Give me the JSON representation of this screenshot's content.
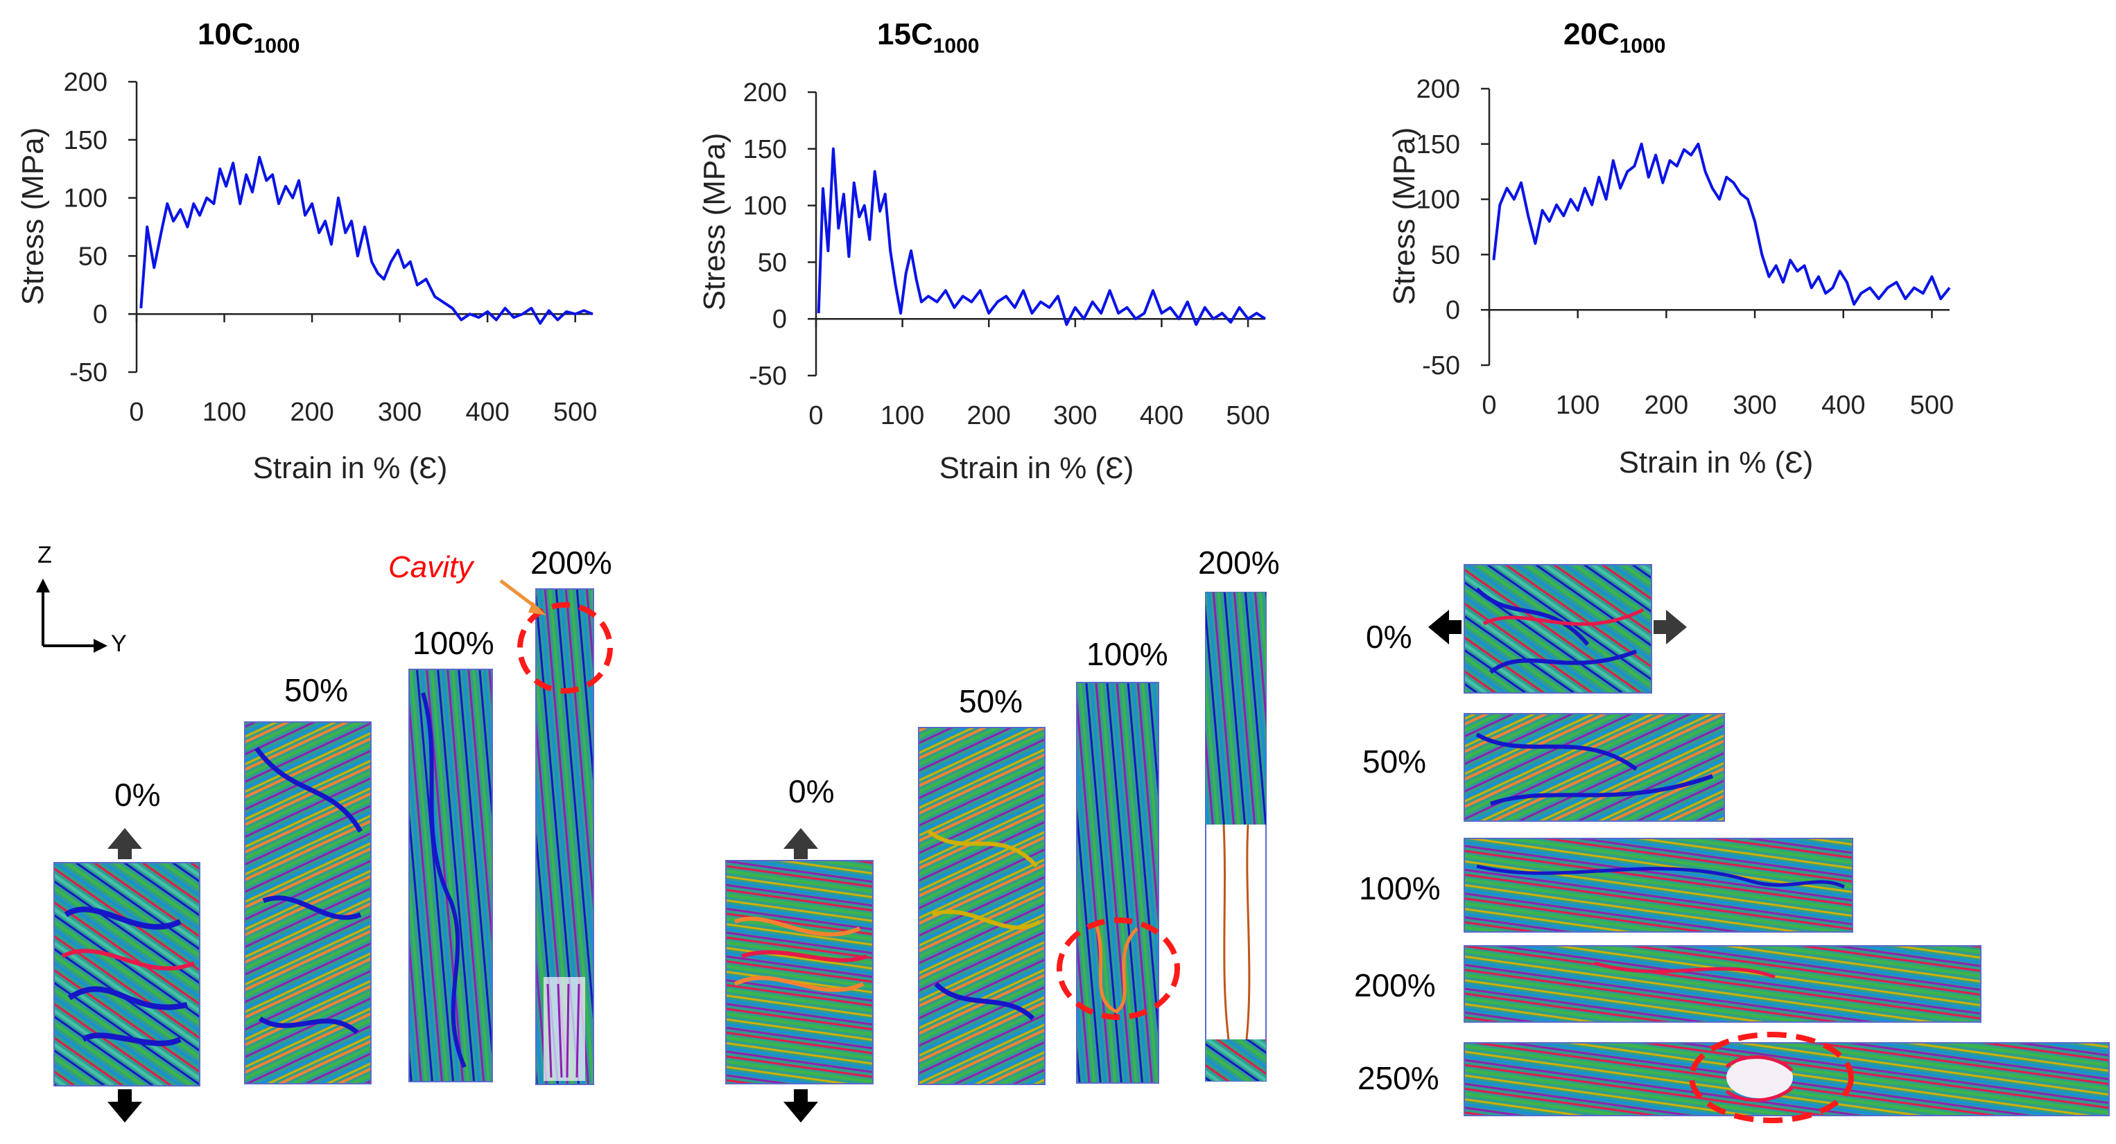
{
  "chart_data": [
    {
      "type": "line",
      "title": "10C",
      "title_sub": "1000",
      "xlabel": "Strain in % (Ɛ)",
      "ylabel": "Stress  (MPa)",
      "xlim": [
        0,
        520
      ],
      "ylim": [
        -50,
        200
      ],
      "xticks": [
        0,
        100,
        200,
        300,
        400,
        500
      ],
      "yticks": [
        -50,
        0,
        50,
        100,
        150,
        200
      ],
      "line_color": "#0a14e6",
      "x": [
        5,
        12,
        20,
        28,
        35,
        42,
        50,
        58,
        65,
        72,
        80,
        88,
        95,
        102,
        110,
        118,
        125,
        132,
        140,
        148,
        155,
        162,
        170,
        178,
        185,
        192,
        200,
        208,
        215,
        222,
        230,
        238,
        245,
        252,
        260,
        268,
        275,
        282,
        290,
        298,
        305,
        312,
        320,
        330,
        340,
        350,
        360,
        370,
        380,
        390,
        400,
        410,
        420,
        430,
        440,
        450,
        460,
        470,
        480,
        490,
        500,
        510,
        520
      ],
      "y": [
        5,
        75,
        40,
        70,
        95,
        80,
        90,
        75,
        95,
        85,
        100,
        95,
        125,
        110,
        130,
        95,
        120,
        105,
        135,
        115,
        120,
        95,
        110,
        100,
        115,
        85,
        95,
        70,
        80,
        60,
        100,
        70,
        80,
        50,
        75,
        45,
        35,
        30,
        45,
        55,
        40,
        45,
        25,
        30,
        15,
        10,
        5,
        -5,
        0,
        -3,
        2,
        -5,
        5,
        -3,
        0,
        5,
        -8,
        3,
        -5,
        2,
        0,
        3,
        0
      ],
      "series_name": "10C1000"
    },
    {
      "type": "line",
      "title": "15C",
      "title_sub": "1000",
      "xlabel": "Strain in % (Ɛ)",
      "ylabel": "Stress  (MPa)",
      "xlim": [
        0,
        520
      ],
      "ylim": [
        -50,
        200
      ],
      "xticks": [
        0,
        100,
        200,
        300,
        400,
        500
      ],
      "yticks": [
        -50,
        0,
        50,
        100,
        150,
        200
      ],
      "line_color": "#0a14e6",
      "x": [
        3,
        8,
        14,
        20,
        26,
        32,
        38,
        44,
        50,
        56,
        62,
        68,
        74,
        80,
        86,
        92,
        98,
        104,
        110,
        116,
        122,
        130,
        140,
        150,
        160,
        170,
        180,
        190,
        200,
        210,
        220,
        230,
        240,
        250,
        260,
        270,
        280,
        290,
        300,
        310,
        320,
        330,
        340,
        350,
        360,
        370,
        380,
        390,
        400,
        410,
        420,
        430,
        440,
        450,
        460,
        470,
        480,
        490,
        500,
        510,
        520
      ],
      "y": [
        5,
        115,
        60,
        150,
        80,
        110,
        55,
        120,
        90,
        100,
        70,
        130,
        95,
        110,
        60,
        30,
        5,
        40,
        60,
        35,
        15,
        20,
        15,
        25,
        10,
        20,
        15,
        25,
        5,
        15,
        20,
        10,
        25,
        5,
        15,
        10,
        20,
        -5,
        10,
        0,
        15,
        5,
        25,
        5,
        10,
        0,
        5,
        25,
        5,
        10,
        0,
        15,
        -5,
        10,
        0,
        5,
        -3,
        10,
        0,
        5,
        0
      ],
      "series_name": "15C1000"
    },
    {
      "type": "line",
      "title": "20C",
      "title_sub": "1000",
      "xlabel": "Strain in % (Ɛ)",
      "ylabel": "Stress  (MPa)",
      "xlim": [
        0,
        520
      ],
      "ylim": [
        -50,
        200
      ],
      "xticks": [
        0,
        100,
        200,
        300,
        400,
        500
      ],
      "yticks": [
        -50,
        0,
        50,
        100,
        150,
        200
      ],
      "line_color": "#0a14e6",
      "x": [
        5,
        12,
        20,
        28,
        36,
        44,
        52,
        60,
        68,
        76,
        84,
        92,
        100,
        108,
        116,
        124,
        132,
        140,
        148,
        156,
        164,
        172,
        180,
        188,
        196,
        204,
        212,
        220,
        228,
        236,
        244,
        252,
        260,
        268,
        276,
        284,
        292,
        300,
        308,
        316,
        324,
        332,
        340,
        348,
        356,
        364,
        372,
        380,
        388,
        396,
        404,
        412,
        420,
        430,
        440,
        450,
        460,
        470,
        480,
        490,
        500,
        510,
        520
      ],
      "y": [
        45,
        95,
        110,
        100,
        115,
        85,
        60,
        90,
        80,
        95,
        85,
        100,
        90,
        110,
        95,
        120,
        100,
        135,
        110,
        125,
        130,
        150,
        120,
        140,
        115,
        135,
        130,
        145,
        140,
        150,
        125,
        110,
        100,
        120,
        115,
        105,
        100,
        80,
        50,
        30,
        40,
        25,
        45,
        35,
        40,
        20,
        30,
        15,
        20,
        35,
        25,
        5,
        15,
        20,
        10,
        20,
        25,
        10,
        20,
        15,
        30,
        10,
        20
      ],
      "series_name": "20C1000"
    }
  ],
  "labels": {
    "axis_z": "Z",
    "axis_y": "Y",
    "cavity": "Cavity",
    "group1": [
      "0%",
      "50%",
      "100%",
      "200%"
    ],
    "group2": [
      "0%",
      "50%",
      "100%",
      "200%"
    ],
    "group3": [
      "0%",
      "50%",
      "100%",
      "200%",
      "250%"
    ]
  },
  "colors": {
    "snapshot_bg": "#2f9d8c",
    "chain_palette": [
      "#1a8fd6",
      "#3cb44b",
      "#e6194b",
      "#1616c8",
      "#f58231",
      "#911eb4",
      "#46c0a8",
      "#d0b000",
      "#7fbf3f"
    ],
    "cavity_ring": "#ff1a1a",
    "arrow": "#3a3a3a",
    "arrow_orange": "#f0923a"
  }
}
